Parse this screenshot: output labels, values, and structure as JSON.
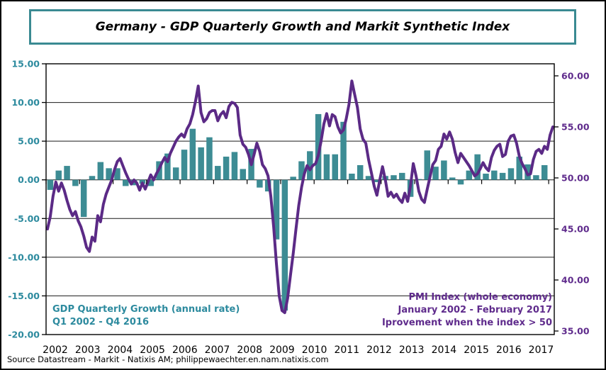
{
  "title": {
    "text": "Germany - GDP Quarterly Growth and Markit Synthetic Index"
  },
  "annotations": {
    "gdp": {
      "line1": "GDP Quarterly Growth (annual rate)",
      "line2": "Q1 2002 - Q4 2016",
      "color": "#2c8a9e"
    },
    "pmi": {
      "line1": "PMI Index (whole economy)",
      "line2": "January 2002 - February 2017",
      "line3": "Iprovement when the index > 50",
      "color": "#5f2b8c"
    }
  },
  "source": {
    "text": "Source Datastream - Markit - Natixis AM; philippewaechter.en.nam.natixis.com"
  },
  "chart_data": {
    "type": [
      "bar",
      "line"
    ],
    "title": "Germany - GDP Quarterly Growth and Markit Synthetic Index",
    "grid": "horizontal",
    "x_years": [
      "2002",
      "2003",
      "2004",
      "2005",
      "2006",
      "2007",
      "2008",
      "2009",
      "2010",
      "2011",
      "2012",
      "2013",
      "2014",
      "2015",
      "2016",
      "2017"
    ],
    "left_axis": {
      "label": "GDP quarterly growth annual rate (%)",
      "min": -20,
      "max": 15,
      "step": 5,
      "color": "#2c8a9e"
    },
    "right_axis": {
      "label": "PMI index",
      "min": 35,
      "max": 60,
      "step": 5,
      "color": "#5f2b8c"
    },
    "gdp_bars": {
      "name": "GDP Quarterly Growth (annual rate)",
      "axis": "left",
      "color": "#3d8c94",
      "start": "2002-Q1",
      "end": "2016-Q4",
      "values": [
        -1.3,
        1.2,
        1.8,
        -0.8,
        -4.8,
        0.5,
        2.3,
        1.5,
        1.5,
        -0.8,
        -0.7,
        -0.5,
        -0.8,
        2.4,
        3.4,
        1.6,
        3.9,
        6.6,
        4.2,
        5.5,
        1.8,
        3.0,
        3.6,
        1.4,
        4.0,
        -1.0,
        -1.5,
        -7.7,
        -16.9,
        0.4,
        2.4,
        3.7,
        8.5,
        3.3,
        3.3,
        7.5,
        0.8,
        1.9,
        0.5,
        -0.3,
        0.5,
        0.6,
        0.9,
        -2.2,
        0.1,
        3.8,
        1.7,
        2.5,
        0.3,
        -0.6,
        1.2,
        3.3,
        0.8,
        1.2,
        0.9,
        1.5,
        3.0,
        2.0,
        0.6,
        1.9
      ]
    },
    "pmi_line": {
      "name": "PMI Index (whole economy)",
      "axis": "right",
      "color": "#5b2a86",
      "start": "2002-01",
      "end": "2017-02",
      "values": [
        45.0,
        46.2,
        48.2,
        49.6,
        48.7,
        49.5,
        48.8,
        47.8,
        46.9,
        46.3,
        46.7,
        45.8,
        45.2,
        44.3,
        43.2,
        42.8,
        44.2,
        43.8,
        46.3,
        45.7,
        47.4,
        48.4,
        49.1,
        49.8,
        50.8,
        51.6,
        51.9,
        51.2,
        50.5,
        49.9,
        49.4,
        49.8,
        49.5,
        48.8,
        49.5,
        48.9,
        49.6,
        50.3,
        49.8,
        50.4,
        50.9,
        51.5,
        52.0,
        51.6,
        52.4,
        53.0,
        53.6,
        54.0,
        54.3,
        54.0,
        54.8,
        55.3,
        56.2,
        57.5,
        59.0,
        56.4,
        55.5,
        55.8,
        56.4,
        56.6,
        56.6,
        55.6,
        56.2,
        56.5,
        55.9,
        57.0,
        57.4,
        57.3,
        56.9,
        54.2,
        53.3,
        53.0,
        52.3,
        51.3,
        52.3,
        53.4,
        52.6,
        51.3,
        50.9,
        50.2,
        48.2,
        45.2,
        41.6,
        38.4,
        37.0,
        36.8,
        38.2,
        40.4,
        42.6,
        45.0,
        47.3,
        49.1,
        50.4,
        51.2,
        50.8,
        51.2,
        51.4,
        52.2,
        53.6,
        55.3,
        56.3,
        55.1,
        56.2,
        56.0,
        55.0,
        54.4,
        54.7,
        55.8,
        57.2,
        59.5,
        58.2,
        56.9,
        54.8,
        53.8,
        53.4,
        51.8,
        50.5,
        49.2,
        48.3,
        49.8,
        51.1,
        49.8,
        48.2,
        48.6,
        48.1,
        48.4,
        47.9,
        47.6,
        48.5,
        47.7,
        49.2,
        51.4,
        50.2,
        48.7,
        47.9,
        47.6,
        48.9,
        50.1,
        51.3,
        51.7,
        52.8,
        53.1,
        54.3,
        53.8,
        54.5,
        53.8,
        52.5,
        51.5,
        52.4,
        52.0,
        51.6,
        51.2,
        50.7,
        50.2,
        50.4,
        50.9,
        51.5,
        51.0,
        50.7,
        52.0,
        52.7,
        53.1,
        53.3,
        52.1,
        52.3,
        53.6,
        54.1,
        54.2,
        53.4,
        52.1,
        51.4,
        50.9,
        50.3,
        50.4,
        51.8,
        52.6,
        52.8,
        52.4,
        53.1,
        52.8,
        54.2,
        55.0
      ]
    }
  }
}
